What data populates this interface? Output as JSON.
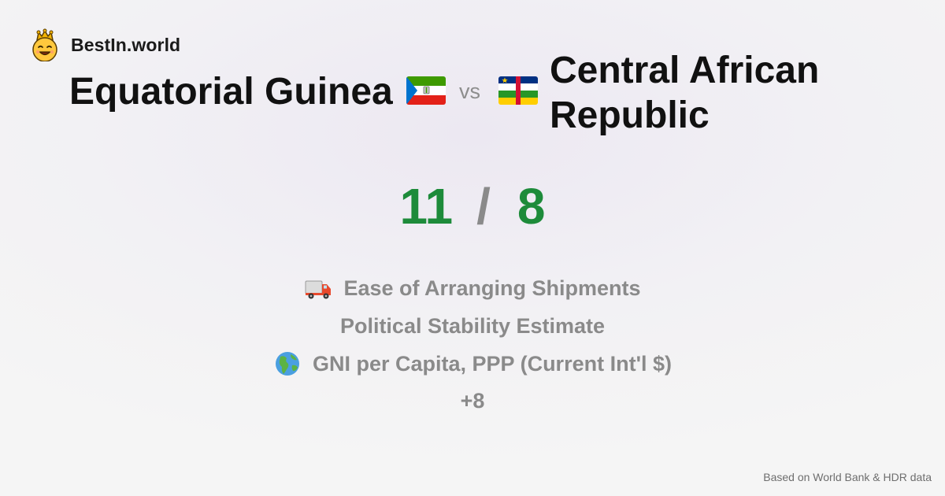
{
  "brand": {
    "name": "BestIn.world",
    "logo_icon": "crowned-smiley-icon"
  },
  "comparison": {
    "left_country": "Equatorial Guinea",
    "left_flag": "flag-equatorial-guinea-icon",
    "separator": "vs",
    "right_country": "Central African Republic",
    "right_flag": "flag-central-african-republic-icon"
  },
  "score": {
    "left": "11",
    "separator": "/",
    "right": "8",
    "color": "#1d8b3a"
  },
  "metrics": [
    {
      "icon": "delivery-truck-icon",
      "label": "Ease of Arranging Shipments"
    },
    {
      "icon": "",
      "label": "Political Stability Estimate"
    },
    {
      "icon": "globe-icon",
      "label": "GNI per Capita, PPP (Current Int'l $)"
    }
  ],
  "more": "+8",
  "footer": "Based on World Bank & HDR data"
}
